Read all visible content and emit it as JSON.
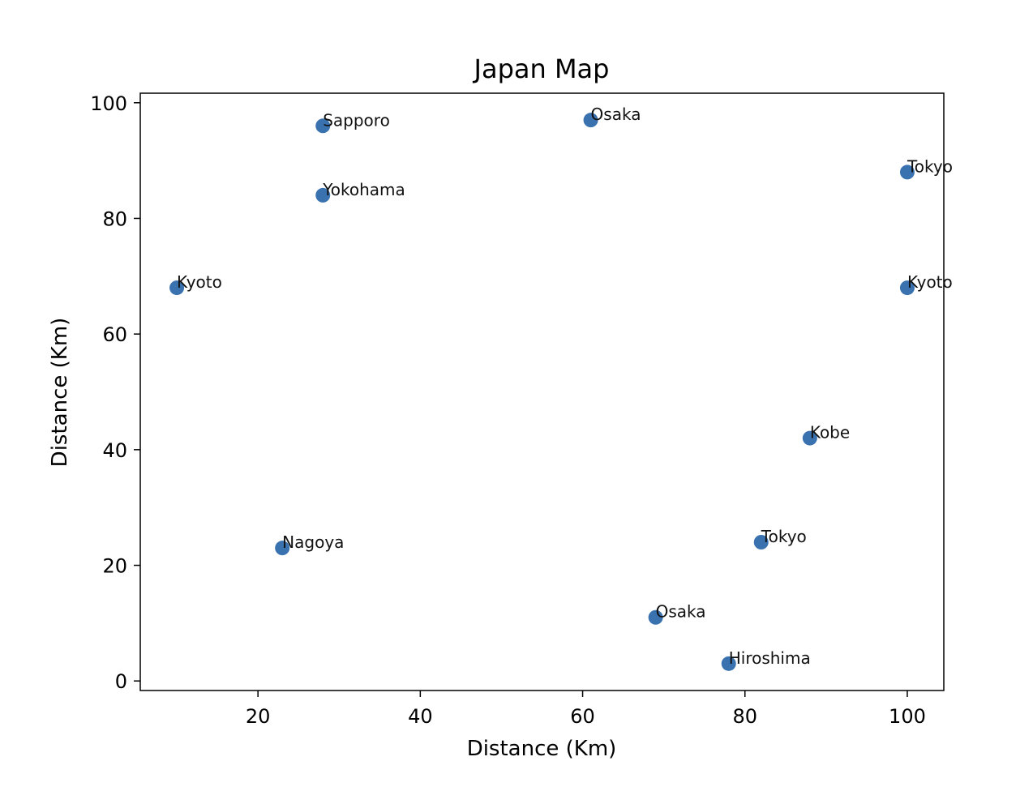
{
  "chart_data": {
    "type": "scatter",
    "title": "Japan Map",
    "xlabel": "Distance (Km)",
    "ylabel": "Distance (Km)",
    "xlim": [
      5.5,
      104.5
    ],
    "ylim": [
      -1.65,
      101.65
    ],
    "xticks": [
      20,
      40,
      60,
      80,
      100
    ],
    "yticks": [
      0,
      20,
      40,
      60,
      80,
      100
    ],
    "grid": false,
    "point_color": "#3a72b0",
    "points": [
      {
        "label": "Sapporo",
        "x": 28,
        "y": 96
      },
      {
        "label": "Osaka",
        "x": 61,
        "y": 97
      },
      {
        "label": "Tokyo",
        "x": 100,
        "y": 88
      },
      {
        "label": "Yokohama",
        "x": 28,
        "y": 84
      },
      {
        "label": "Kyoto",
        "x": 10,
        "y": 68
      },
      {
        "label": "Kyoto",
        "x": 100,
        "y": 68
      },
      {
        "label": "Kobe",
        "x": 88,
        "y": 42
      },
      {
        "label": "Nagoya",
        "x": 23,
        "y": 23
      },
      {
        "label": "Tokyo",
        "x": 82,
        "y": 24
      },
      {
        "label": "Osaka",
        "x": 69,
        "y": 11
      },
      {
        "label": "Hiroshima",
        "x": 78,
        "y": 3
      }
    ]
  }
}
